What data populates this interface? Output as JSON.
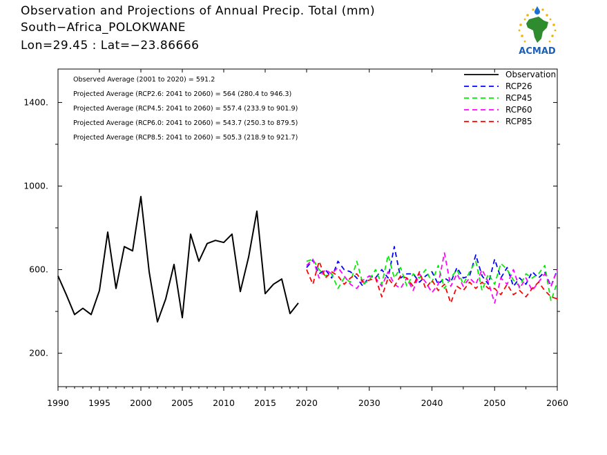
{
  "header": {
    "title_line1": "Observation and Projections of Annual Precip. Total (mm)",
    "title_line2": "South−Africa_POLOKWANE",
    "title_line3": "Lon=29.45 : Lat=−23.86666"
  },
  "logo": {
    "text": "ACMAD",
    "icon": "africa-logo-icon"
  },
  "annotations": [
    "Observed Average (2001 to 2020) = 591.2",
    "Projected Average (RCP2.6: 2041 to 2060) = 564 (280.4 to 946.3)",
    "Projected Average (RCP4.5: 2041 to 2060) = 557.4 (233.9 to 901.9)",
    "Projected Average (RCP6.0: 2041 to 2060) = 543.7 (250.3 to 879.5)",
    "Projected Average (RCP8.5: 2041 to 2060) = 505.3 (218.9 to 921.7)"
  ],
  "colors": {
    "observation": "#000000",
    "rcp26": "#0000ff",
    "rcp45": "#00ee00",
    "rcp60": "#ff00ff",
    "rcp85": "#ff0000"
  },
  "chart_data": {
    "type": "line",
    "title": "Observation and Projections of Annual Precip. Total (mm)",
    "xlabel": "",
    "ylabel": "",
    "xlim": [
      1990,
      2060
    ],
    "ylim": [
      40,
      1560
    ],
    "x_ticks_left": [
      1990,
      1995,
      2000,
      2005,
      2010,
      2015,
      2020
    ],
    "x_ticks_right": [
      2030,
      2040,
      2050,
      2060
    ],
    "y_ticks": [
      200,
      600,
      1000,
      1400
    ],
    "y_tick_labels": [
      "200.",
      "600.",
      "1000.",
      "1400."
    ],
    "legend_position": "top-right",
    "series": [
      {
        "name": "Observation",
        "key": "observation",
        "style": "solid",
        "x": [
          1990,
          1991,
          1992,
          1993,
          1994,
          1995,
          1996,
          1997,
          1998,
          1999,
          2000,
          2001,
          2002,
          2003,
          2004,
          2005,
          2006,
          2007,
          2008,
          2009,
          2010,
          2011,
          2012,
          2013,
          2014,
          2015,
          2016,
          2017,
          2018,
          2019,
          2020
        ],
        "values": [
          570,
          480,
          385,
          415,
          385,
          500,
          780,
          510,
          710,
          690,
          950,
          590,
          350,
          460,
          625,
          370,
          770,
          640,
          725,
          740,
          730,
          770,
          495,
          660,
          880,
          485,
          530,
          555,
          390,
          440,
          null
        ]
      },
      {
        "name": "RCP26",
        "key": "rcp26",
        "style": "dashed",
        "x": [
          2020,
          2021,
          2022,
          2023,
          2024,
          2025,
          2026,
          2027,
          2028,
          2029,
          2030,
          2031,
          2032,
          2033,
          2034,
          2035,
          2036,
          2037,
          2038,
          2039,
          2040,
          2041,
          2042,
          2043,
          2044,
          2045,
          2046,
          2047,
          2048,
          2049,
          2050,
          2051,
          2052,
          2053,
          2054,
          2055,
          2056,
          2057,
          2058,
          2059,
          2060
        ],
        "values": [
          610,
          645,
          580,
          600,
          560,
          640,
          600,
          590,
          560,
          520,
          570,
          560,
          600,
          560,
          710,
          560,
          580,
          580,
          540,
          570,
          590,
          530,
          560,
          540,
          610,
          560,
          570,
          670,
          570,
          530,
          650,
          560,
          610,
          520,
          560,
          530,
          590,
          560,
          590,
          520,
          600
        ]
      },
      {
        "name": "RCP45",
        "key": "rcp45",
        "style": "dashed",
        "x": [
          2020,
          2021,
          2022,
          2023,
          2024,
          2025,
          2026,
          2027,
          2028,
          2029,
          2030,
          2031,
          2032,
          2033,
          2034,
          2035,
          2036,
          2037,
          2038,
          2039,
          2040,
          2041,
          2042,
          2043,
          2044,
          2045,
          2046,
          2047,
          2048,
          2049,
          2050,
          2051,
          2052,
          2053,
          2054,
          2055,
          2056,
          2057,
          2058,
          2059,
          2060
        ],
        "values": [
          640,
          650,
          600,
          570,
          580,
          510,
          560,
          540,
          640,
          530,
          550,
          600,
          530,
          670,
          560,
          610,
          520,
          580,
          560,
          600,
          540,
          620,
          510,
          560,
          600,
          530,
          590,
          640,
          500,
          580,
          530,
          630,
          600,
          550,
          520,
          580,
          560,
          580,
          620,
          450,
          540
        ]
      },
      {
        "name": "RCP60",
        "key": "rcp60",
        "style": "dashed",
        "x": [
          2020,
          2021,
          2022,
          2023,
          2024,
          2025,
          2026,
          2027,
          2028,
          2029,
          2030,
          2031,
          2032,
          2033,
          2034,
          2035,
          2036,
          2037,
          2038,
          2039,
          2040,
          2041,
          2042,
          2043,
          2044,
          2045,
          2046,
          2047,
          2048,
          2049,
          2050,
          2051,
          2052,
          2053,
          2054,
          2055,
          2056,
          2057,
          2058,
          2059,
          2060
        ],
        "values": [
          620,
          650,
          560,
          600,
          580,
          610,
          570,
          530,
          510,
          550,
          570,
          560,
          520,
          590,
          530,
          510,
          560,
          500,
          580,
          540,
          490,
          530,
          680,
          520,
          580,
          520,
          560,
          530,
          600,
          540,
          440,
          560,
          530,
          600,
          510,
          560,
          500,
          540,
          580,
          520,
          600
        ]
      },
      {
        "name": "RCP85",
        "key": "rcp85",
        "style": "dashed",
        "x": [
          2020,
          2021,
          2022,
          2023,
          2024,
          2025,
          2026,
          2027,
          2028,
          2029,
          2030,
          2031,
          2032,
          2033,
          2034,
          2035,
          2036,
          2037,
          2038,
          2039,
          2040,
          2041,
          2042,
          2043,
          2044,
          2045,
          2046,
          2047,
          2048,
          2049,
          2050,
          2051,
          2052,
          2053,
          2054,
          2055,
          2056,
          2057,
          2058,
          2059,
          2060
        ],
        "values": [
          600,
          530,
          640,
          560,
          590,
          570,
          530,
          560,
          580,
          540,
          550,
          560,
          470,
          560,
          520,
          570,
          560,
          520,
          590,
          510,
          550,
          500,
          530,
          440,
          520,
          500,
          540,
          510,
          540,
          510,
          510,
          480,
          530,
          480,
          500,
          470,
          510,
          540,
          500,
          470,
          460
        ]
      }
    ]
  }
}
